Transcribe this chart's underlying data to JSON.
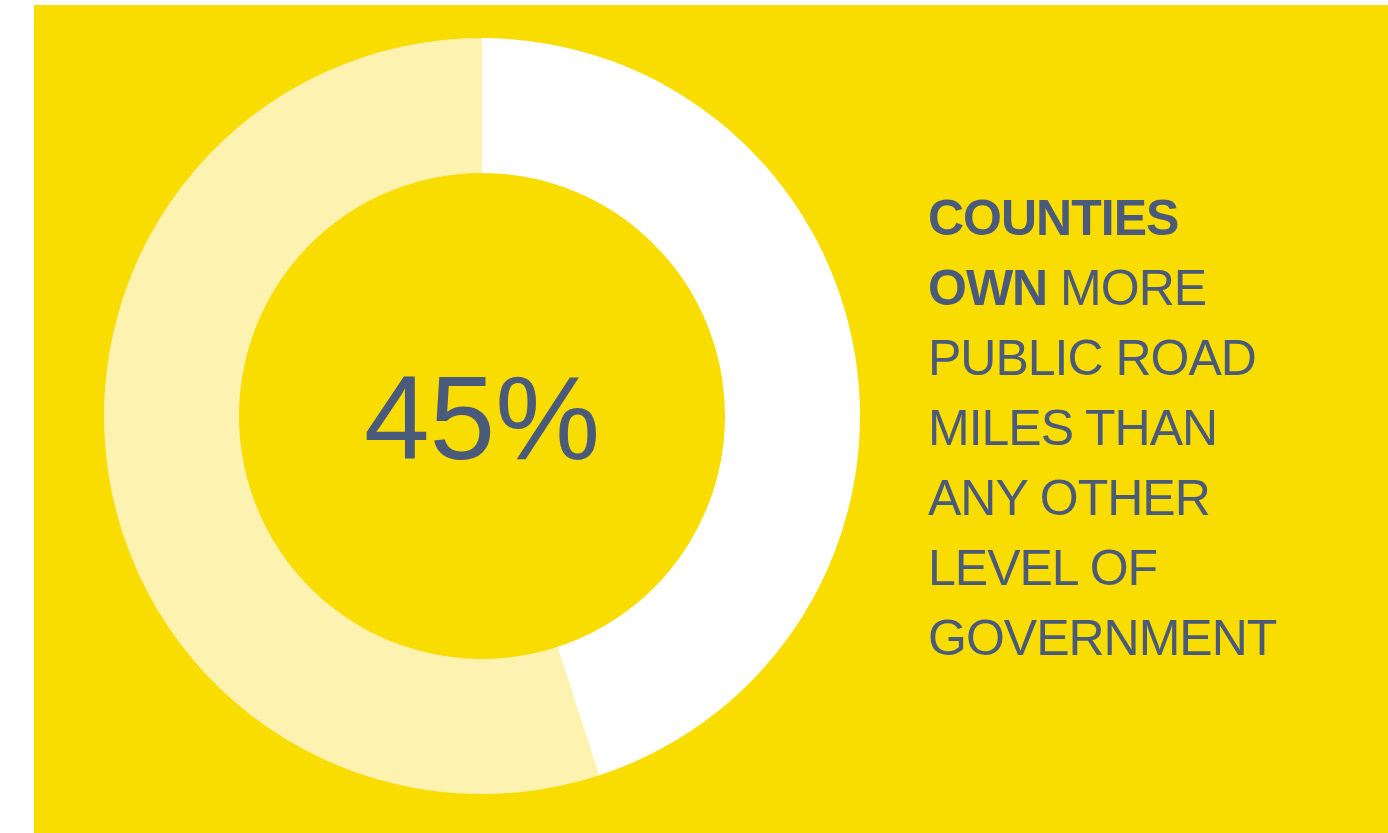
{
  "chart_data": {
    "type": "donut",
    "title": "COUNTIES OWN MORE PUBLIC ROAD MILES THAN ANY OTHER LEVEL OF GOVERNMENT",
    "categories": [
      null,
      null
    ],
    "values": [
      45,
      55
    ],
    "colors": [
      "#ffffff",
      "#fdf2b0"
    ],
    "annotations": [
      "45%"
    ]
  }
}
